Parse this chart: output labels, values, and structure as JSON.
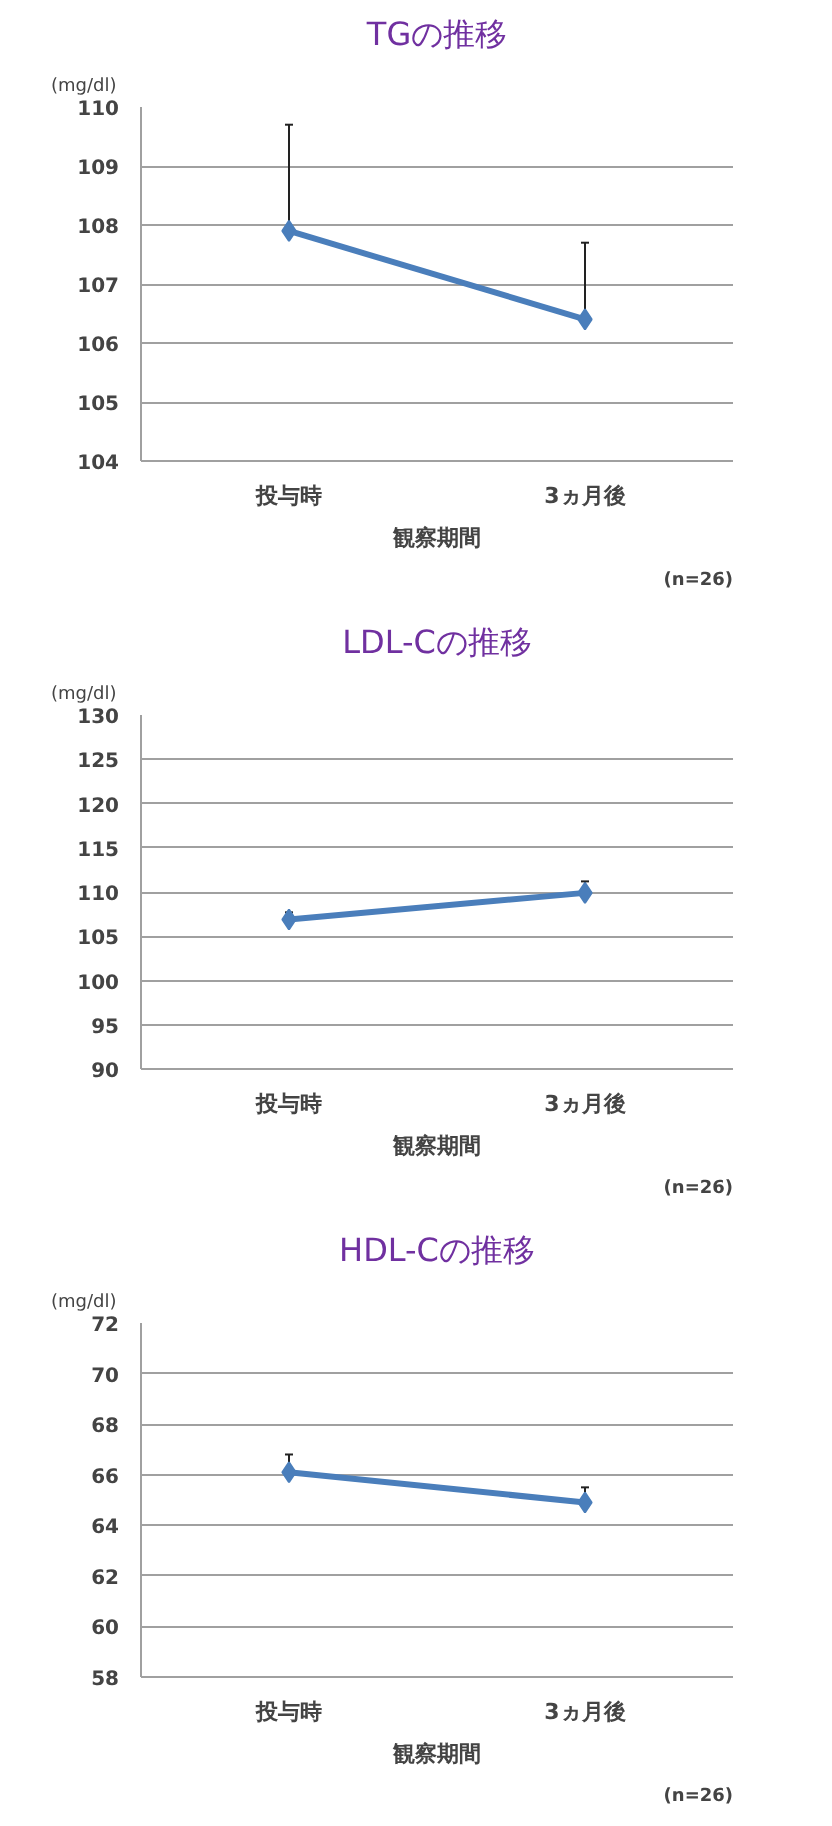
{
  "chart_data": [
    {
      "type": "line",
      "title": "TGの推移",
      "ylabel": "(mg/dl)",
      "xlabel": "観察期間",
      "categories": [
        "投与時",
        "3ヵ月後"
      ],
      "series": [
        {
          "color": "#4a7ebb",
          "values": [
            107.9,
            106.4
          ],
          "errors": [
            [
              107.9,
              109.7
            ],
            [
              106.4,
              107.7
            ]
          ]
        }
      ],
      "ylim": [
        104,
        110
      ],
      "yticks": [
        104,
        105,
        106,
        107,
        108,
        109,
        110
      ],
      "grid": "y",
      "marker": "diamond",
      "line_style": "solid",
      "annotations": [
        "(n=26)"
      ]
    },
    {
      "type": "line",
      "title": "LDL-Cの推移",
      "ylabel": "(mg/dl)",
      "xlabel": "観察期間",
      "categories": [
        "投与時",
        "3ヵ月後"
      ],
      "series": [
        {
          "color": "#4a7ebb",
          "values": [
            106.9,
            109.9
          ],
          "errors": [
            [
              106.9,
              107.7
            ],
            [
              109.9,
              111.2
            ]
          ]
        }
      ],
      "ylim": [
        90,
        130
      ],
      "yticks": [
        90,
        95,
        100,
        105,
        110,
        115,
        120,
        125,
        130
      ],
      "grid": "y",
      "marker": "diamond",
      "line_style": "solid",
      "annotations": [
        "(n=26)"
      ]
    },
    {
      "type": "line",
      "title": "HDL-Cの推移",
      "ylabel": "(mg/dl)",
      "xlabel": "観察期間",
      "categories": [
        "投与時",
        "3ヵ月後"
      ],
      "series": [
        {
          "color": "#4a7ebb",
          "values": [
            66.1,
            64.9
          ],
          "errors": [
            [
              66.1,
              66.8
            ],
            [
              64.9,
              65.5
            ]
          ]
        }
      ],
      "ylim": [
        58,
        72
      ],
      "yticks": [
        58,
        60,
        62,
        64,
        66,
        68,
        70,
        72
      ],
      "grid": "y",
      "marker": "diamond",
      "line_style": "solid",
      "annotations": [
        "(n=26)"
      ]
    }
  ]
}
